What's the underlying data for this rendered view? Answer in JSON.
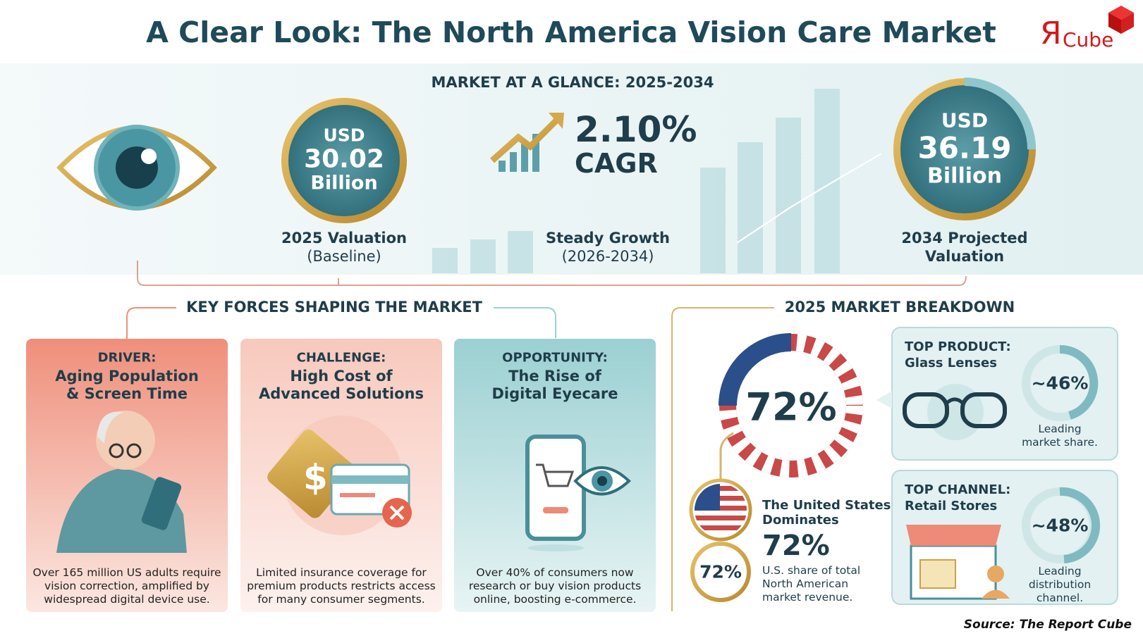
{
  "header": {
    "title": "A Clear Look: The North America Vision Care Market",
    "logo": {
      "mark": "Я",
      "text": "Cube"
    }
  },
  "glance": {
    "heading": "MARKET AT A GLANCE: 2025-2034",
    "start": {
      "lines": [
        "USD",
        "30.02",
        "Billion"
      ],
      "label": "2025 Valuation",
      "sublabel": "(Baseline)"
    },
    "growth": {
      "value": "2.10%",
      "unit": "CAGR",
      "label": "Steady Growth",
      "sublabel": "(2026-2034)"
    },
    "end": {
      "lines": [
        "USD",
        "36.19",
        "Billion"
      ],
      "label": "2034 Projected",
      "sublabel": "Valuation"
    }
  },
  "forces": {
    "heading": "KEY FORCES SHAPING THE MARKET",
    "cards": [
      {
        "kind": "DRIVER:",
        "title": [
          "Aging Population",
          "& Screen Time"
        ],
        "text": "Over 165 million US adults require vision correction, amplified by widespread digital device use."
      },
      {
        "kind": "CHALLENGE:",
        "title": [
          "High Cost of",
          "Advanced Solutions"
        ],
        "text": "Limited insurance coverage for premium products restricts access for many consumer segments."
      },
      {
        "kind": "OPPORTUNITY:",
        "title": [
          "The Rise of",
          "Digital Eyecare"
        ],
        "text": "Over 40% of consumers now research or buy vision products online, boosting e-commerce."
      }
    ]
  },
  "breakdown": {
    "heading": "2025 MARKET BREAKDOWN",
    "ring": "72%",
    "us": {
      "title": [
        "The United States",
        "Dominates"
      ],
      "badge": "72%",
      "value": "72%",
      "text": "U.S. share of total North American market revenue."
    },
    "product": {
      "heading": "TOP PRODUCT:",
      "name": "Glass Lenses",
      "share": "~46%",
      "note": "Leading market share."
    },
    "channel": {
      "heading": "TOP CHANNEL:",
      "name": "Retail Stores",
      "share": "~48%",
      "note": "Leading distribution channel."
    }
  },
  "source": "Source: The Report Cube"
}
